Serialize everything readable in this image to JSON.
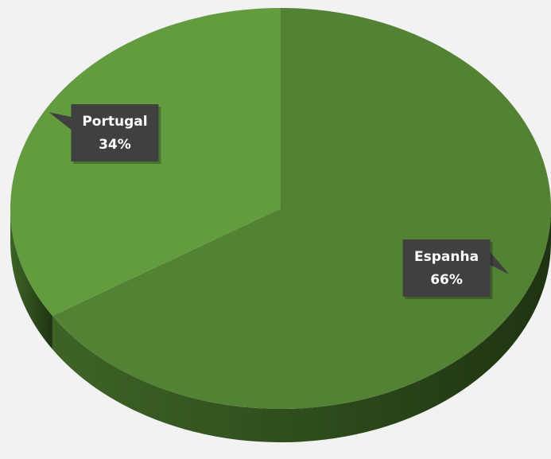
{
  "chart_data": {
    "type": "pie",
    "categories": [
      "Espanha",
      "Portugal"
    ],
    "values": [
      66,
      34
    ],
    "value_labels": [
      "66%",
      "34%"
    ],
    "colors": [
      "#548235",
      "#639c3f"
    ]
  }
}
